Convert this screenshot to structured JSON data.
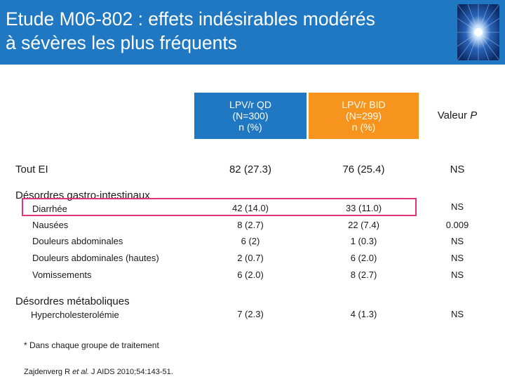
{
  "slide": {
    "title_line1": "Etude M06-802 : effets indésirables modérés",
    "title_line2": "à sévères les plus fréquents"
  },
  "columns": [
    {
      "line1": "LPV/r QD",
      "line2": "(N=300)",
      "line3": "n (%)",
      "color": "#1f78c1"
    },
    {
      "line1": "LPV/r BID",
      "line2": "(N=299)",
      "line3": "n (%)",
      "color": "#f7941d"
    },
    {
      "label_prefix": "Valeur ",
      "label_italic": "P"
    }
  ],
  "rows": {
    "tout_ei": {
      "label": "Tout EI",
      "qd": "82 (27.3)",
      "bid": "76 (25.4)",
      "p": "NS"
    },
    "gi_section": "Désordres gastro-intestinaux",
    "diarrhee": {
      "label": "Diarrhée",
      "qd": "42 (14.0)",
      "bid": "33 (11.0)",
      "p": "NS"
    },
    "nausees": {
      "label": "Nausées",
      "qd": "8 (2.7)",
      "bid": "22 (7.4)",
      "p": "0.009"
    },
    "douleurs": {
      "label": "Douleurs abdominales",
      "qd": "6 (2)",
      "bid": "1 (0.3)",
      "p": "NS"
    },
    "douleurs_hautes": {
      "label": "Douleurs abdominales (hautes)",
      "qd": "2 (0.7)",
      "bid": "6 (2.0)",
      "p": "NS"
    },
    "vomissements": {
      "label": "Vomissements",
      "qd": "6 (2.0)",
      "bid": "8 (2.7)",
      "p": "NS"
    },
    "meta_section": "Désordres métaboliques",
    "hyperchol": {
      "label": "Hypercholesterolémie",
      "qd": "7 (2.3)",
      "bid": "4 (1.3)",
      "p": "NS"
    }
  },
  "footnote": "* Dans chaque groupe de traitement",
  "reference": {
    "authors": "Zajdenverg R ",
    "etal": "et al.",
    "journal": " J AIDS 2010;54:143-51."
  },
  "colors": {
    "header": "#1f78c1",
    "qd": "#1f78c1",
    "bid": "#f7941d",
    "highlight": "#e2337f"
  },
  "icons": {
    "logo": "starburst-logo-icon"
  }
}
